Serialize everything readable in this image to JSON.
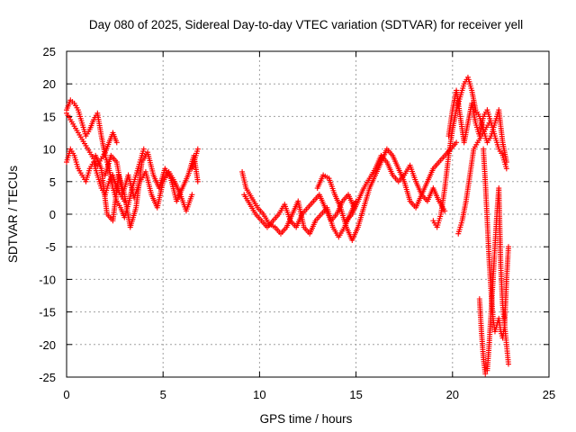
{
  "chart_data": {
    "type": "scatter",
    "title": "Day 080 of 2025, Sidereal Day-to-day VTEC variation (SDTVAR) for receiver yell",
    "xlabel": "GPS time / hours",
    "ylabel": "SDTVAR / TECUs",
    "xlim": [
      0,
      25
    ],
    "ylim": [
      -25,
      25
    ],
    "xticks": [
      0,
      5,
      10,
      15,
      20,
      25
    ],
    "yticks": [
      -25,
      -20,
      -15,
      -10,
      -5,
      0,
      5,
      10,
      15,
      20,
      25
    ],
    "grid": true,
    "marker": "+",
    "color": "#ff0000",
    "series": [
      {
        "name": "SDTVAR",
        "segments": [
          {
            "x": [
              0.0,
              0.2,
              0.4,
              0.6,
              0.8,
              1.0,
              1.2,
              1.4,
              1.6,
              1.8,
              2.0,
              2.2,
              2.4,
              2.6,
              2.8,
              3.0,
              3.2,
              3.4,
              3.6,
              3.8,
              4.0
            ],
            "y": [
              16,
              17.5,
              17,
              16,
              14,
              12,
              13,
              14.5,
              15.5,
              12,
              9,
              7,
              4,
              2,
              1,
              -0.5,
              1.5,
              4,
              6,
              8,
              10
            ]
          },
          {
            "x": [
              0.0,
              0.2,
              0.4,
              0.6,
              0.8,
              1.0,
              1.2,
              1.4,
              1.6,
              1.8,
              2.0,
              2.2,
              2.4,
              2.6
            ],
            "y": [
              15.5,
              14.5,
              13.5,
              12.5,
              11.5,
              10.5,
              9.5,
              8.5,
              7.5,
              8.5,
              9.5,
              11,
              12.5,
              11
            ]
          },
          {
            "x": [
              0.0,
              0.2,
              0.4,
              0.6,
              0.8,
              1.0,
              1.2,
              1.4,
              1.6,
              1.8,
              2.0,
              2.2,
              2.4,
              2.6,
              2.8,
              3.0
            ],
            "y": [
              8,
              10,
              9,
              7,
              6,
              5,
              7,
              8,
              6,
              4,
              3,
              5,
              6,
              4,
              3,
              2
            ]
          },
          {
            "x": [
              1.5,
              1.8,
              2.1,
              2.4,
              2.7,
              3.0,
              3.3,
              3.6,
              3.9,
              4.2,
              4.5,
              4.8,
              5.1,
              5.4,
              5.7,
              6.0,
              6.3,
              6.6,
              6.8
            ],
            "y": [
              9,
              7,
              0,
              -1,
              6,
              3,
              -2,
              1,
              8,
              9.5,
              6,
              4,
              7,
              5.5,
              2,
              4,
              6,
              9,
              5
            ]
          },
          {
            "x": [
              2.0,
              2.3,
              2.6,
              2.9,
              3.2,
              3.5,
              3.8,
              4.1,
              4.4,
              4.7,
              5.0,
              5.3,
              5.6,
              5.9,
              6.2,
              6.5
            ],
            "y": [
              6,
              9,
              8,
              3,
              6,
              2.5,
              5,
              6.5,
              3,
              1,
              5,
              6.5,
              5,
              3,
              0.5,
              3
            ]
          },
          {
            "x": [
              6.5,
              6.7,
              6.8
            ],
            "y": [
              7,
              9,
              10
            ]
          },
          {
            "x": [
              9.1,
              9.3,
              9.6,
              9.9,
              10.2,
              10.5,
              10.8,
              11.1,
              11.4,
              11.7,
              12.0,
              12.3,
              12.6,
              12.9,
              13.2,
              13.5,
              13.8,
              14.1,
              14.4,
              14.7,
              15.0
            ],
            "y": [
              6.5,
              4,
              2.5,
              1,
              0,
              -1.5,
              -2,
              -3,
              -2,
              0,
              2,
              -2,
              -3,
              -1,
              0,
              1,
              -2,
              -3.5,
              -2,
              0,
              2
            ]
          },
          {
            "x": [
              9.2,
              9.5,
              9.8,
              10.1,
              10.4,
              10.7,
              11.0,
              11.3,
              11.6,
              11.9,
              12.2,
              12.5,
              12.8,
              13.1,
              13.4,
              13.7,
              14.0,
              14.3,
              14.6,
              14.9
            ],
            "y": [
              3,
              1.5,
              0,
              -1,
              -2,
              -1,
              0,
              1.5,
              -1,
              -2,
              0,
              1,
              2,
              3,
              1,
              -1,
              0,
              2,
              3,
              1
            ]
          },
          {
            "x": [
              13.0,
              13.3,
              13.6,
              13.9,
              14.2,
              14.5,
              14.8,
              15.1,
              15.4,
              15.7,
              16.0,
              16.3,
              16.6,
              16.9,
              17.2,
              17.5,
              17.8,
              18.1,
              18.4,
              18.7,
              19.0,
              19.3,
              19.6,
              19.9,
              20.2
            ],
            "y": [
              4,
              6,
              5.5,
              3,
              1,
              -2,
              -4,
              -2,
              1,
              4,
              6,
              8,
              10,
              9,
              7,
              5,
              2,
              1,
              3,
              5,
              7,
              8,
              9,
              10,
              11
            ]
          },
          {
            "x": [
              14.5,
              14.8,
              15.1,
              15.4,
              15.7,
              16.0,
              16.3,
              16.6,
              16.9,
              17.2,
              17.5,
              17.8,
              18.1,
              18.4,
              18.7,
              19.0,
              19.3,
              19.6
            ],
            "y": [
              -1,
              0,
              2,
              4,
              5.5,
              7,
              9,
              8,
              6,
              5,
              6,
              7.5,
              5,
              3,
              2,
              4,
              2,
              0.5
            ]
          },
          {
            "x": [
              19.0,
              19.2,
              19.4,
              19.6,
              19.8,
              20.0,
              20.2,
              20.4,
              20.6,
              20.8,
              21.0,
              21.2,
              21.4,
              21.6,
              21.8,
              22.0,
              22.2,
              22.4,
              22.6,
              22.8
            ],
            "y": [
              -1,
              -2,
              0,
              4,
              9,
              13,
              16,
              18,
              20,
              21,
              19,
              16,
              15,
              13,
              11,
              12,
              14,
              16,
              11,
              8
            ]
          },
          {
            "x": [
              19.8,
              20.0,
              20.2,
              20.4,
              20.6,
              20.8,
              21.0,
              21.2,
              21.4,
              21.6,
              21.8,
              22.0,
              22.2,
              22.4,
              22.6,
              22.8
            ],
            "y": [
              12,
              16,
              19,
              15,
              11,
              14,
              17,
              14,
              12,
              15,
              16,
              14,
              12,
              10,
              9,
              7
            ]
          },
          {
            "x": [
              20.3,
              20.5,
              20.7,
              20.9,
              21.1,
              21.3,
              21.5,
              21.7,
              21.9
            ],
            "y": [
              -3,
              -1,
              2,
              6,
              10,
              11,
              12,
              13,
              14
            ]
          },
          {
            "x": [
              21.4,
              21.5,
              21.6,
              21.7,
              21.8,
              21.9,
              22.0,
              22.1,
              22.2,
              22.3,
              22.4,
              22.5,
              22.6,
              22.7,
              22.8,
              22.9
            ],
            "y": [
              -13,
              -18,
              -22,
              -24.5,
              -24,
              -20,
              -15,
              -10,
              -5,
              0,
              4,
              -8,
              -14,
              -17,
              -20,
              -23
            ]
          },
          {
            "x": [
              21.6,
              21.7,
              21.8,
              21.9,
              22.0,
              22.1,
              22.2,
              22.3,
              22.4,
              22.5,
              22.6,
              22.7,
              22.8,
              22.9
            ],
            "y": [
              10,
              5,
              -1,
              -7,
              -12,
              -16,
              -18,
              -17,
              -16,
              -18,
              -19,
              -17,
              -10,
              -5
            ]
          }
        ]
      }
    ]
  }
}
